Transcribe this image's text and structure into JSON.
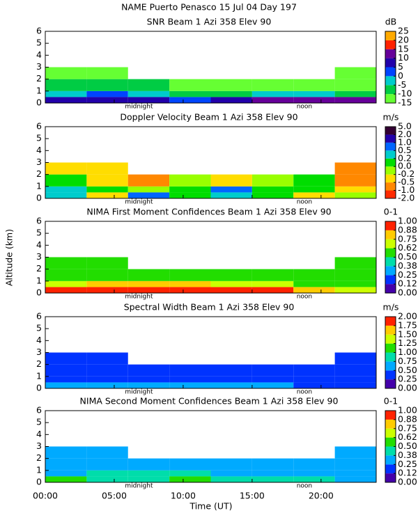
{
  "title": "NAME Puerto Penasco  15 Jul 04 Day 197",
  "ylabel": "Altitude (km)",
  "xlabel": "Time (UT)",
  "chart_data": [
    {
      "type": "heatmap",
      "title": "SNR Beam 1 Azi 358 Elev 90",
      "unit": "dB",
      "xlim": [
        0,
        24
      ],
      "ylim": [
        0,
        6
      ],
      "yticks": [
        0,
        1,
        2,
        3,
        4,
        5,
        6
      ],
      "annotations": [
        "midnight",
        "noon"
      ],
      "xbins": [
        0,
        3,
        6,
        9,
        12,
        15,
        18,
        21,
        24
      ],
      "ybins": [
        0,
        0.5,
        1,
        2,
        3
      ],
      "z": [
        [
          5,
          5,
          5,
          0,
          5,
          10,
          10,
          10
        ],
        [
          -5,
          0,
          -5,
          -10,
          -10,
          -5,
          -5,
          -10
        ],
        [
          -10,
          -10,
          -10,
          -12,
          -12,
          -12,
          -12,
          -12
        ],
        [
          -13,
          -13,
          null,
          null,
          null,
          null,
          null,
          -13
        ]
      ],
      "colorbar": {
        "ticks": [
          -15,
          -10,
          -5,
          0,
          5,
          10,
          15,
          20,
          25
        ],
        "colors": [
          "#66ff33",
          "#00cc44",
          "#00cccc",
          "#0044ff",
          "#2200aa",
          "#660099",
          "#ff2200",
          "#ffaa00"
        ]
      }
    },
    {
      "type": "heatmap",
      "title": "Doppler Velocity Beam 1 Azi 358 Elev 90",
      "unit": "m/s",
      "xlim": [
        0,
        24
      ],
      "ylim": [
        0,
        6
      ],
      "yticks": [
        0,
        1,
        2,
        3,
        4,
        5,
        6
      ],
      "annotations": [
        "midnight",
        "noon"
      ],
      "xbins": [
        0,
        3,
        6,
        9,
        12,
        15,
        18,
        21,
        24
      ],
      "ybins": [
        0,
        0.5,
        1,
        2,
        3
      ],
      "z": [
        [
          0.2,
          -0.5,
          0.5,
          0,
          0.2,
          0,
          -0.5,
          -0.2
        ],
        [
          0.2,
          0,
          -0.2,
          0,
          0.5,
          0,
          0,
          -0.5
        ],
        [
          0,
          -0.5,
          -1,
          -0.2,
          -0.5,
          -0.2,
          0,
          -1
        ],
        [
          -0.5,
          -0.5,
          null,
          null,
          null,
          null,
          null,
          -1
        ]
      ],
      "colorbar": {
        "ticks": [
          {
            "value": -2,
            "label": "-2.0"
          },
          {
            "value": -1,
            "label": "-1.0"
          },
          -0.5,
          -0.2,
          {
            "value": 0,
            "label": "0.0"
          },
          0.2,
          0.5,
          {
            "value": 1,
            "label": "1.0"
          },
          {
            "value": 2,
            "label": "2.0"
          },
          {
            "value": 5,
            "label": "5.0"
          }
        ],
        "colors": [
          "#ff2a00",
          "#ff8800",
          "#ffdd00",
          "#99ff00",
          "#00dd00",
          "#00cccc",
          "#0066ff",
          "#2200aa",
          "#330033"
        ]
      }
    },
    {
      "type": "heatmap",
      "title": "NIMA First Moment Confidences Beam 1 Azi 358 Elev 90",
      "unit": "0-1",
      "xlim": [
        0,
        24
      ],
      "ylim": [
        0,
        6
      ],
      "yticks": [
        0,
        1,
        2,
        3,
        4,
        5,
        6
      ],
      "annotations": [
        "midnight",
        "noon"
      ],
      "xbins": [
        0,
        3,
        6,
        9,
        12,
        15,
        18,
        21,
        24
      ],
      "ybins": [
        0,
        0.5,
        1,
        2,
        3
      ],
      "z": [
        [
          0.9,
          0.95,
          0.95,
          0.9,
          0.9,
          0.9,
          0.8,
          0.7
        ],
        [
          0.7,
          0.8,
          0.85,
          0.8,
          0.7,
          0.7,
          0.6,
          0.6
        ],
        [
          0.55,
          0.6,
          0.5,
          0.55,
          0.55,
          0.5,
          0.5,
          0.5
        ],
        [
          0.55,
          0.55,
          null,
          null,
          null,
          null,
          null,
          0.5
        ]
      ],
      "colorbar": {
        "ticks": [
          {
            "value": 0,
            "label": "0.00"
          },
          0.12,
          0.25,
          0.38,
          {
            "value": 0.5,
            "label": "0.50"
          },
          0.62,
          0.75,
          0.88,
          {
            "value": 1,
            "label": "1.00"
          }
        ],
        "colors": [
          "#4400aa",
          "#0033ff",
          "#00aaff",
          "#00ddaa",
          "#22dd00",
          "#ccff00",
          "#ffcc00",
          "#ff2200"
        ]
      }
    },
    {
      "type": "heatmap",
      "title": "Spectral Width Beam 1 Azi 358 Elev 90",
      "unit": "m/s",
      "xlim": [
        0,
        24
      ],
      "ylim": [
        0,
        6
      ],
      "yticks": [
        0,
        1,
        2,
        3,
        4,
        5,
        6
      ],
      "annotations": [
        "midnight",
        "noon"
      ],
      "xbins": [
        0,
        3,
        6,
        9,
        12,
        15,
        18,
        21,
        24
      ],
      "ybins": [
        0,
        0.5,
        1,
        2,
        3
      ],
      "z": [
        [
          0.6,
          0.6,
          0.55,
          0.5,
          0.5,
          0.55,
          0.45,
          0.45
        ],
        [
          0.4,
          0.45,
          0.35,
          0.35,
          0.3,
          0.35,
          0.3,
          0.3
        ],
        [
          0.3,
          0.35,
          0.3,
          0.3,
          0.3,
          0.3,
          0.25,
          0.3
        ],
        [
          0.3,
          0.3,
          null,
          null,
          null,
          null,
          null,
          0.3
        ]
      ],
      "colorbar": {
        "ticks": [
          {
            "value": 0,
            "label": "0.00"
          },
          0.25,
          {
            "value": 0.5,
            "label": "0.50"
          },
          0.75,
          {
            "value": 1,
            "label": "1.00"
          },
          1.25,
          {
            "value": 1.5,
            "label": "1.50"
          },
          1.75,
          {
            "value": 2,
            "label": "2.00"
          }
        ],
        "colors": [
          "#4400aa",
          "#0033ff",
          "#00aaff",
          "#00ddaa",
          "#22dd00",
          "#ccff00",
          "#ffcc00",
          "#ff2200"
        ]
      }
    },
    {
      "type": "heatmap",
      "title": "NIMA Second Moment Confidences Beam 1 Azi 358 Elev 90",
      "unit": "0-1",
      "xlim": [
        0,
        24
      ],
      "ylim": [
        0,
        6
      ],
      "yticks": [
        0,
        1,
        2,
        3,
        4,
        5,
        6
      ],
      "annotations": [
        "midnight",
        "noon"
      ],
      "xticks": [
        {
          "value": 0,
          "label": "00:00"
        },
        {
          "value": 5,
          "label": "05:00"
        },
        {
          "value": 10,
          "label": "10:00"
        },
        {
          "value": 15,
          "label": "15:00"
        },
        {
          "value": 20,
          "label": "20:00"
        }
      ],
      "xbins": [
        0,
        3,
        6,
        9,
        12,
        15,
        18,
        21,
        24
      ],
      "ybins": [
        0,
        0.5,
        1,
        2,
        3
      ],
      "z": [
        [
          0.5,
          0.45,
          0.45,
          0.5,
          0.4,
          0.45,
          0.4,
          0.35
        ],
        [
          0.35,
          0.4,
          0.4,
          0.4,
          0.35,
          0.35,
          0.3,
          0.3
        ],
        [
          0.3,
          0.3,
          0.3,
          0.35,
          0.3,
          0.3,
          0.3,
          0.3
        ],
        [
          0.3,
          0.3,
          null,
          null,
          null,
          null,
          null,
          0.3
        ]
      ],
      "colorbar": {
        "ticks": [
          {
            "value": 0,
            "label": "0.00"
          },
          0.12,
          0.25,
          0.38,
          {
            "value": 0.5,
            "label": "0.50"
          },
          0.62,
          0.75,
          0.88,
          {
            "value": 1,
            "label": "1.00"
          }
        ],
        "colors": [
          "#4400aa",
          "#0033ff",
          "#00aaff",
          "#00ddaa",
          "#22dd00",
          "#ccff00",
          "#ffcc00",
          "#ff2200"
        ]
      }
    }
  ]
}
